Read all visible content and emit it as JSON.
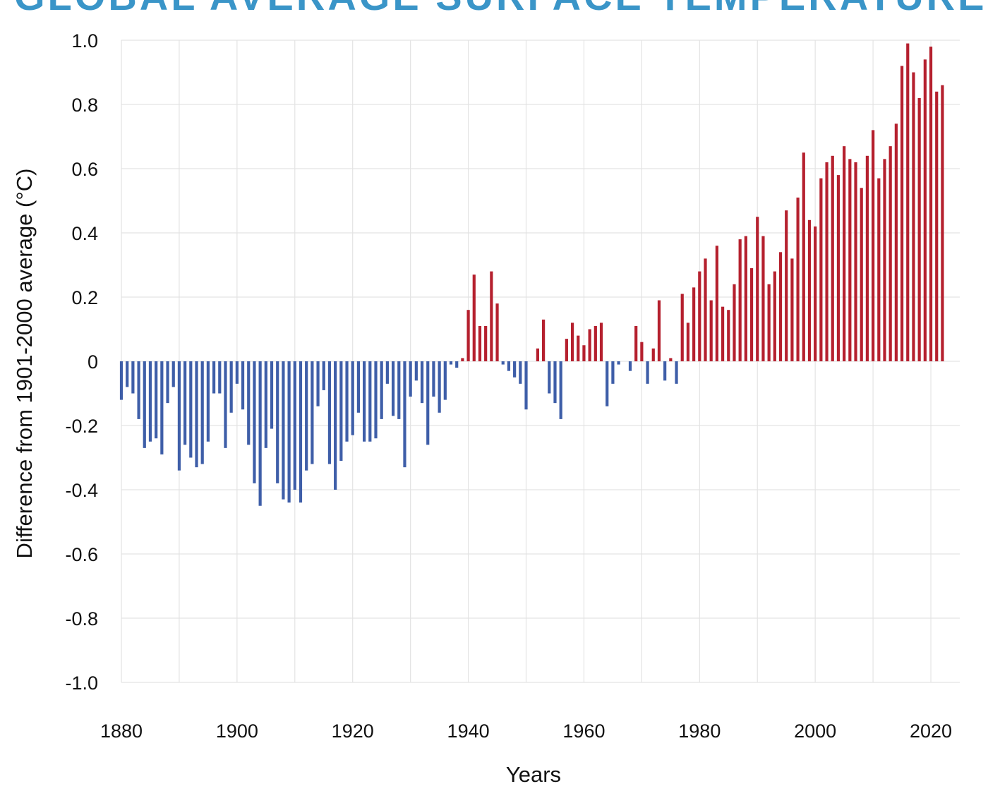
{
  "chart_data": {
    "type": "bar",
    "title": "GLOBAL AVERAGE SURFACE TEMPERATURE",
    "xlabel": "Years",
    "ylabel": "Difference from 1901-2000 average (°C)",
    "xlim": [
      1880,
      2022
    ],
    "ylim": [
      -1.0,
      1.0
    ],
    "x_ticks": [
      1880,
      1900,
      1920,
      1940,
      1960,
      1980,
      2000,
      2020
    ],
    "x_tick_labels": [
      "1880",
      "1900",
      "1920",
      "1940",
      "1960",
      "1980",
      "2000",
      "2020"
    ],
    "y_ticks": [
      1.0,
      0.8,
      0.6,
      0.4,
      0.2,
      0,
      -0.2,
      -0.4,
      -0.6,
      -0.8,
      -1.0
    ],
    "y_tick_labels": [
      "1.0",
      "0.8",
      "0.6",
      "0.4",
      "0.2",
      "0",
      "-0.2",
      "-0.4",
      "-0.6",
      "-0.8",
      "-1.0"
    ],
    "grid": true,
    "colors": {
      "positive": "#b5202e",
      "negative": "#3e5ea8",
      "grid": "#e3e3e3",
      "title": "#3a95c8"
    },
    "start_year": 1880,
    "values": [
      -0.12,
      -0.08,
      -0.1,
      -0.18,
      -0.27,
      -0.25,
      -0.24,
      -0.29,
      -0.13,
      -0.08,
      -0.34,
      -0.26,
      -0.3,
      -0.33,
      -0.32,
      -0.25,
      -0.1,
      -0.1,
      -0.27,
      -0.16,
      -0.07,
      -0.15,
      -0.26,
      -0.38,
      -0.45,
      -0.27,
      -0.21,
      -0.38,
      -0.43,
      -0.44,
      -0.4,
      -0.44,
      -0.34,
      -0.32,
      -0.14,
      -0.09,
      -0.32,
      -0.4,
      -0.31,
      -0.25,
      -0.23,
      -0.16,
      -0.25,
      -0.25,
      -0.24,
      -0.18,
      -0.07,
      -0.17,
      -0.18,
      -0.33,
      -0.11,
      -0.06,
      -0.13,
      -0.26,
      -0.11,
      -0.16,
      -0.12,
      -0.01,
      -0.02,
      0.01,
      0.16,
      0.27,
      0.11,
      0.11,
      0.28,
      0.18,
      -0.01,
      -0.03,
      -0.05,
      -0.07,
      -0.15,
      0.0,
      0.04,
      0.13,
      -0.1,
      -0.13,
      -0.18,
      0.07,
      0.12,
      0.08,
      0.05,
      0.1,
      0.11,
      0.12,
      -0.14,
      -0.07,
      -0.01,
      0.0,
      -0.03,
      0.11,
      0.06,
      -0.07,
      0.04,
      0.19,
      -0.06,
      0.01,
      -0.07,
      0.21,
      0.12,
      0.23,
      0.28,
      0.32,
      0.19,
      0.36,
      0.17,
      0.16,
      0.24,
      0.38,
      0.39,
      0.29,
      0.45,
      0.39,
      0.24,
      0.28,
      0.34,
      0.47,
      0.32,
      0.51,
      0.65,
      0.44,
      0.42,
      0.57,
      0.62,
      0.64,
      0.58,
      0.67,
      0.63,
      0.62,
      0.54,
      0.64,
      0.72,
      0.57,
      0.63,
      0.67,
      0.74,
      0.92,
      0.99,
      0.9,
      0.82,
      0.94,
      0.98,
      0.84,
      0.86
    ]
  }
}
